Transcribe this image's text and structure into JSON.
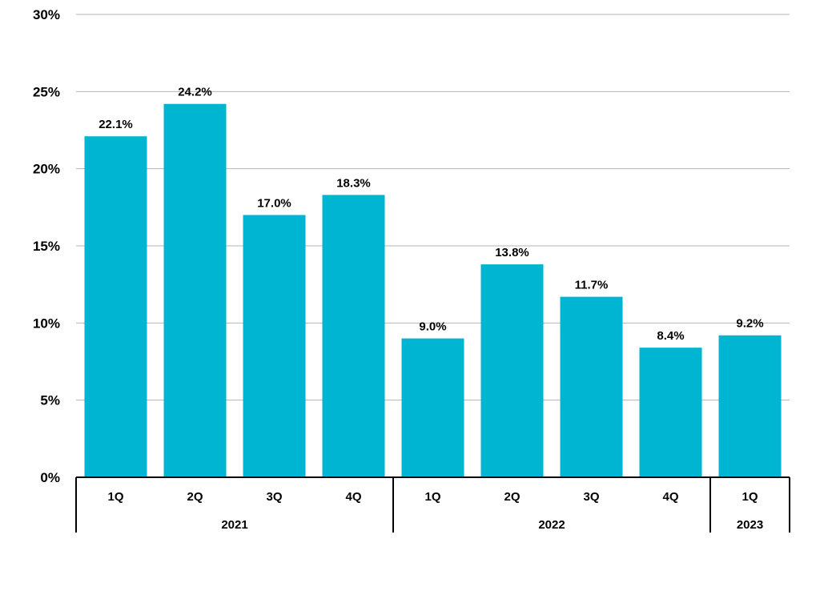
{
  "chart_data": {
    "type": "bar",
    "title": "",
    "xlabel": "",
    "ylabel": "",
    "ylim": [
      0,
      30
    ],
    "y_ticks": [
      "0%",
      "5%",
      "10%",
      "15%",
      "20%",
      "25%",
      "30%"
    ],
    "y_tick_values": [
      0,
      5,
      10,
      15,
      20,
      25,
      30
    ],
    "grid": true,
    "legend": "none",
    "bar_color": "#00B5D1",
    "categories": [
      "1Q",
      "2Q",
      "3Q",
      "4Q",
      "1Q",
      "2Q",
      "3Q",
      "4Q",
      "1Q"
    ],
    "groups": [
      {
        "label": "2021",
        "count": 4
      },
      {
        "label": "2022",
        "count": 4
      },
      {
        "label": "2023",
        "count": 1
      }
    ],
    "values": [
      22.1,
      24.2,
      17.0,
      18.3,
      9.0,
      13.8,
      11.7,
      8.4,
      9.2
    ],
    "data_labels": [
      "22.1%",
      "24.2%",
      "17.0%",
      "18.3%",
      "9.0%",
      "13.8%",
      "11.7%",
      "8.4%",
      "9.2%"
    ]
  }
}
